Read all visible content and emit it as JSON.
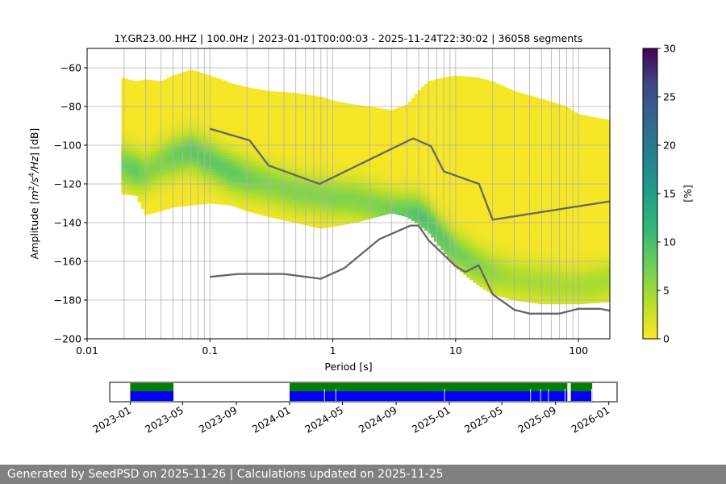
{
  "chart_data": [
    {
      "type": "heatmap",
      "title": "1Y.GR23.00.HHZ | 100.0Hz | 2023-01-01T00:00:03 - 2025-11-24T22:30:02 | 36058 segments",
      "xlabel": "Period [s]",
      "ylabel_parts": [
        "Amplitude [",
        "m",
        "2",
        "/s",
        "4",
        "/Hz",
        "] [dB]"
      ],
      "xscale": "log",
      "xlim": [
        0.01,
        180
      ],
      "ylim": [
        -200,
        -50
      ],
      "x_ticks": [
        0.01,
        0.1,
        1,
        10,
        100
      ],
      "x_tick_labels": [
        "0.01",
        "0.1",
        "1",
        "10",
        "100"
      ],
      "y_ticks": [
        -200,
        -180,
        -160,
        -140,
        -120,
        -100,
        -80,
        -60
      ],
      "y_tick_labels": [
        "−200",
        "−180",
        "−160",
        "−140",
        "−120",
        "−100",
        "−80",
        "−60"
      ],
      "grid": "on",
      "colormap": "viridis",
      "colorbar": {
        "label": "[%]",
        "range": [
          0,
          30
        ],
        "ticks": [
          0,
          5,
          10,
          15,
          20,
          25,
          30
        ],
        "tick_labels": [
          "0",
          "5",
          "10",
          "15",
          "20",
          "25",
          "30"
        ]
      },
      "density_profile": {
        "period": [
          0.019,
          0.025,
          0.03,
          0.04,
          0.05,
          0.07,
          0.1,
          0.15,
          0.2,
          0.3,
          0.5,
          0.8,
          1,
          1.5,
          2,
          3,
          4,
          5,
          6,
          8,
          10,
          15,
          20,
          30,
          50,
          80,
          100,
          180
        ],
        "upper_db": [
          -65,
          -67,
          -66,
          -67,
          -64,
          -61,
          -64,
          -68,
          -70,
          -72,
          -73,
          -75,
          -77,
          -79,
          -80,
          -82,
          -79,
          -72,
          -67,
          -65,
          -64,
          -65,
          -67,
          -72,
          -76,
          -80,
          -84,
          -87
        ],
        "lower_db": [
          -125,
          -126,
          -136,
          -134,
          -132,
          -131,
          -130,
          -131,
          -134,
          -137,
          -140,
          -143,
          -142,
          -140,
          -138,
          -135,
          -137,
          -141,
          -145,
          -155,
          -163,
          -172,
          -177,
          -180,
          -182,
          -182,
          -182,
          -181
        ],
        "mode_db": [
          -110,
          -113,
          -114,
          -109,
          -106,
          -103,
          -108,
          -114,
          -117,
          -120,
          -124,
          -126,
          -127,
          -128,
          -130,
          -134,
          -135,
          -136,
          -140,
          -149,
          -155,
          -162,
          -166,
          -169,
          -171,
          -173,
          -173,
          -170
        ],
        "peak_percent": [
          7,
          8,
          6,
          6,
          7,
          8,
          8,
          8,
          7,
          6,
          6,
          6,
          6,
          6,
          6,
          7,
          8,
          9,
          9,
          8,
          7,
          6,
          5,
          4,
          4,
          4,
          4,
          4
        ]
      },
      "series": [
        {
          "x": [
            0.1,
            0.21,
            0.3,
            0.78,
            4.5,
            6.3,
            8,
            15.5,
            20,
            180
          ],
          "y": [
            -91.5,
            -97.5,
            -110.5,
            -120,
            -96.5,
            -100.5,
            -113.5,
            -120,
            -138.5,
            -129
          ]
        },
        {
          "x": [
            0.1,
            0.17,
            0.4,
            0.8,
            1.24,
            2.4,
            4.3,
            5.0,
            6.0,
            10.0,
            12.0,
            15.4,
            20.0,
            30.0,
            40.0,
            70.0,
            100.0,
            150.0,
            180.0
          ],
          "y": [
            -168,
            -166.5,
            -166.5,
            -169,
            -163.5,
            -148.5,
            -141.5,
            -141.5,
            -149,
            -162.5,
            -165.5,
            -162,
            -177,
            -185,
            -187,
            -187,
            -184.5,
            -184.5,
            -185.5
          ]
        }
      ]
    },
    {
      "type": "bar",
      "xscale": "time",
      "xlim": [
        "2022-11-15",
        "2026-01-20"
      ],
      "x_ticks": [
        "2023-01-01",
        "2023-05-01",
        "2023-09-01",
        "2024-01-01",
        "2024-05-01",
        "2024-09-01",
        "2025-01-01",
        "2025-05-01",
        "2025-09-01",
        "2026-01-01"
      ],
      "x_tick_labels": [
        "2023-01",
        "2023-05",
        "2023-09",
        "2024-01",
        "2024-05",
        "2024-09",
        "2025-01",
        "2025-05",
        "2025-09",
        "2026-01"
      ],
      "series": [
        {
          "color": "#008000",
          "intervals": [
            [
              "2023-01-01",
              "2023-04-10"
            ],
            [
              "2024-01-01",
              "2025-09-28"
            ],
            [
              "2025-10-06",
              "2025-11-24"
            ]
          ]
        },
        {
          "color": "#0000ff",
          "intervals": [
            [
              "2023-01-01",
              "2023-04-10"
            ],
            [
              "2024-01-01",
              "2025-09-28"
            ],
            [
              "2025-10-06",
              "2025-11-24"
            ]
          ]
        }
      ]
    }
  ],
  "footer": {
    "text": "Generated by SeedPSD on 2025-11-26 | Calculations updated on 2025-11-25"
  },
  "colors": {
    "grid": "#b0b0b0",
    "model_line": "#666666",
    "footer_bg": "#808080",
    "availability_green": "#008000",
    "availability_blue": "#0000ff"
  }
}
